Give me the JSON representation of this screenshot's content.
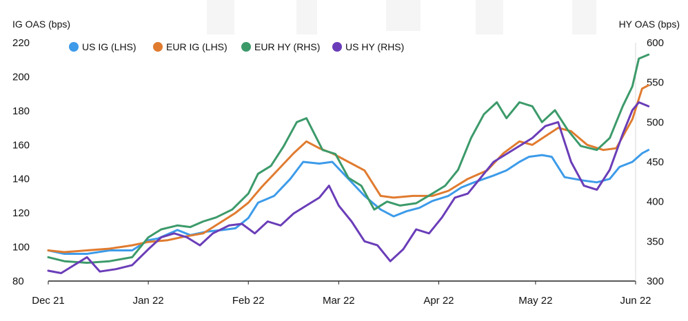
{
  "chart_data": {
    "type": "line",
    "left_axis": {
      "label": "IG OAS (bps)",
      "range": [
        80,
        220
      ],
      "ticks": [
        80,
        100,
        120,
        140,
        160,
        180,
        200,
        220
      ]
    },
    "right_axis": {
      "label": "HY OAS (bps)",
      "range": [
        300,
        600
      ],
      "ticks": [
        300,
        350,
        400,
        450,
        500,
        550,
        600
      ]
    },
    "x_axis": {
      "range": [
        "2021-12-01",
        "2022-06-01"
      ],
      "ticks": [
        {
          "date": "2021-12-01",
          "label": "Dec 21"
        },
        {
          "date": "2022-01-01",
          "label": "Jan 22"
        },
        {
          "date": "2022-02-01",
          "label": "Feb 22"
        },
        {
          "date": "2022-03-01",
          "label": "Mar 22"
        },
        {
          "date": "2022-04-01",
          "label": "Apr 22"
        },
        {
          "date": "2022-05-01",
          "label": "May 22"
        },
        {
          "date": "2022-06-01",
          "label": "Jun 22"
        }
      ]
    },
    "legend_position": "top-left",
    "grid": false,
    "series": [
      {
        "name": "US IG (LHS)",
        "axis": "left",
        "color": "#3d9be9",
        "points": [
          [
            "2021-12-01",
            98
          ],
          [
            "2021-12-06",
            96
          ],
          [
            "2021-12-13",
            96
          ],
          [
            "2021-12-20",
            98
          ],
          [
            "2021-12-27",
            98
          ],
          [
            "2022-01-01",
            104
          ],
          [
            "2022-01-04",
            105
          ],
          [
            "2022-01-10",
            110
          ],
          [
            "2022-01-14",
            107
          ],
          [
            "2022-01-19",
            109
          ],
          [
            "2022-01-24",
            110
          ],
          [
            "2022-01-28",
            111
          ],
          [
            "2022-02-01",
            117
          ],
          [
            "2022-02-04",
            126
          ],
          [
            "2022-02-09",
            130
          ],
          [
            "2022-02-14",
            140
          ],
          [
            "2022-02-18",
            150
          ],
          [
            "2022-02-23",
            149
          ],
          [
            "2022-02-27",
            150
          ],
          [
            "2022-03-04",
            140
          ],
          [
            "2022-03-09",
            130
          ],
          [
            "2022-03-14",
            122
          ],
          [
            "2022-03-18",
            118
          ],
          [
            "2022-03-22",
            121
          ],
          [
            "2022-03-26",
            123
          ],
          [
            "2022-03-30",
            127
          ],
          [
            "2022-04-04",
            130
          ],
          [
            "2022-04-08",
            135
          ],
          [
            "2022-04-12",
            138
          ],
          [
            "2022-04-18",
            142
          ],
          [
            "2022-04-22",
            145
          ],
          [
            "2022-04-26",
            150
          ],
          [
            "2022-04-29",
            153
          ],
          [
            "2022-05-03",
            154
          ],
          [
            "2022-05-06",
            153
          ],
          [
            "2022-05-10",
            141
          ],
          [
            "2022-05-16",
            139
          ],
          [
            "2022-05-20",
            138
          ],
          [
            "2022-05-24",
            140
          ],
          [
            "2022-05-27",
            147
          ],
          [
            "2022-05-31",
            150
          ],
          [
            "2022-06-03",
            155
          ],
          [
            "2022-06-05",
            157
          ]
        ]
      },
      {
        "name": "EUR IG (LHS)",
        "axis": "left",
        "color": "#e07b2f",
        "points": [
          [
            "2021-12-01",
            98
          ],
          [
            "2021-12-06",
            97
          ],
          [
            "2021-12-13",
            98
          ],
          [
            "2021-12-20",
            99
          ],
          [
            "2021-12-27",
            101
          ],
          [
            "2022-01-01",
            103
          ],
          [
            "2022-01-07",
            104
          ],
          [
            "2022-01-12",
            106
          ],
          [
            "2022-01-18",
            108
          ],
          [
            "2022-01-23",
            114
          ],
          [
            "2022-01-28",
            120
          ],
          [
            "2022-02-01",
            126
          ],
          [
            "2022-02-05",
            135
          ],
          [
            "2022-02-10",
            145
          ],
          [
            "2022-02-15",
            155
          ],
          [
            "2022-02-19",
            162
          ],
          [
            "2022-02-23",
            158
          ],
          [
            "2022-02-27",
            155
          ],
          [
            "2022-03-04",
            150
          ],
          [
            "2022-03-09",
            145
          ],
          [
            "2022-03-14",
            130
          ],
          [
            "2022-03-18",
            129
          ],
          [
            "2022-03-24",
            130
          ],
          [
            "2022-03-30",
            130
          ],
          [
            "2022-04-04",
            133
          ],
          [
            "2022-04-10",
            140
          ],
          [
            "2022-04-16",
            145
          ],
          [
            "2022-04-21",
            155
          ],
          [
            "2022-04-26",
            162
          ],
          [
            "2022-04-30",
            160
          ],
          [
            "2022-05-04",
            165
          ],
          [
            "2022-05-08",
            170
          ],
          [
            "2022-05-12",
            168
          ],
          [
            "2022-05-17",
            160
          ],
          [
            "2022-05-22",
            157
          ],
          [
            "2022-05-26",
            158
          ],
          [
            "2022-05-31",
            175
          ],
          [
            "2022-06-03",
            193
          ],
          [
            "2022-06-05",
            195
          ]
        ]
      },
      {
        "name": "EUR HY (RHS)",
        "axis": "right",
        "color": "#3c9a6a",
        "points": [
          [
            "2021-12-01",
            330
          ],
          [
            "2021-12-06",
            325
          ],
          [
            "2021-12-13",
            323
          ],
          [
            "2021-12-20",
            325
          ],
          [
            "2021-12-27",
            330
          ],
          [
            "2022-01-01",
            355
          ],
          [
            "2022-01-05",
            365
          ],
          [
            "2022-01-10",
            370
          ],
          [
            "2022-01-14",
            368
          ],
          [
            "2022-01-18",
            375
          ],
          [
            "2022-01-22",
            380
          ],
          [
            "2022-01-27",
            390
          ],
          [
            "2022-02-01",
            410
          ],
          [
            "2022-02-04",
            435
          ],
          [
            "2022-02-08",
            445
          ],
          [
            "2022-02-12",
            470
          ],
          [
            "2022-02-16",
            500
          ],
          [
            "2022-02-19",
            505
          ],
          [
            "2022-02-24",
            465
          ],
          [
            "2022-02-28",
            460
          ],
          [
            "2022-03-04",
            430
          ],
          [
            "2022-03-08",
            420
          ],
          [
            "2022-03-12",
            390
          ],
          [
            "2022-03-16",
            400
          ],
          [
            "2022-03-20",
            395
          ],
          [
            "2022-03-25",
            398
          ],
          [
            "2022-03-30",
            410
          ],
          [
            "2022-04-03",
            420
          ],
          [
            "2022-04-07",
            440
          ],
          [
            "2022-04-11",
            480
          ],
          [
            "2022-04-15",
            510
          ],
          [
            "2022-04-19",
            525
          ],
          [
            "2022-04-22",
            505
          ],
          [
            "2022-04-26",
            525
          ],
          [
            "2022-04-30",
            520
          ],
          [
            "2022-05-03",
            500
          ],
          [
            "2022-05-07",
            515
          ],
          [
            "2022-05-11",
            490
          ],
          [
            "2022-05-15",
            470
          ],
          [
            "2022-05-20",
            465
          ],
          [
            "2022-05-24",
            480
          ],
          [
            "2022-05-28",
            520
          ],
          [
            "2022-05-31",
            545
          ],
          [
            "2022-06-02",
            580
          ],
          [
            "2022-06-05",
            585
          ]
        ]
      },
      {
        "name": "US HY (RHS)",
        "axis": "right",
        "color": "#6a3db8",
        "points": [
          [
            "2021-12-01",
            313
          ],
          [
            "2021-12-05",
            310
          ],
          [
            "2021-12-09",
            320
          ],
          [
            "2021-12-13",
            330
          ],
          [
            "2021-12-17",
            312
          ],
          [
            "2021-12-22",
            315
          ],
          [
            "2021-12-27",
            320
          ],
          [
            "2022-01-01",
            340
          ],
          [
            "2022-01-05",
            355
          ],
          [
            "2022-01-09",
            360
          ],
          [
            "2022-01-13",
            355
          ],
          [
            "2022-01-17",
            345
          ],
          [
            "2022-01-21",
            360
          ],
          [
            "2022-01-26",
            370
          ],
          [
            "2022-01-30",
            372
          ],
          [
            "2022-02-03",
            360
          ],
          [
            "2022-02-07",
            375
          ],
          [
            "2022-02-11",
            370
          ],
          [
            "2022-02-15",
            385
          ],
          [
            "2022-02-19",
            395
          ],
          [
            "2022-02-23",
            405
          ],
          [
            "2022-02-26",
            420
          ],
          [
            "2022-03-01",
            395
          ],
          [
            "2022-03-05",
            375
          ],
          [
            "2022-03-09",
            350
          ],
          [
            "2022-03-13",
            345
          ],
          [
            "2022-03-17",
            325
          ],
          [
            "2022-03-21",
            340
          ],
          [
            "2022-03-25",
            365
          ],
          [
            "2022-03-29",
            360
          ],
          [
            "2022-04-02",
            380
          ],
          [
            "2022-04-06",
            405
          ],
          [
            "2022-04-10",
            410
          ],
          [
            "2022-04-14",
            430
          ],
          [
            "2022-04-18",
            450
          ],
          [
            "2022-04-22",
            460
          ],
          [
            "2022-04-26",
            470
          ],
          [
            "2022-04-30",
            480
          ],
          [
            "2022-05-04",
            495
          ],
          [
            "2022-05-08",
            500
          ],
          [
            "2022-05-12",
            450
          ],
          [
            "2022-05-16",
            420
          ],
          [
            "2022-05-20",
            415
          ],
          [
            "2022-05-24",
            440
          ],
          [
            "2022-05-28",
            485
          ],
          [
            "2022-05-31",
            515
          ],
          [
            "2022-06-02",
            525
          ],
          [
            "2022-06-05",
            520
          ]
        ]
      }
    ]
  }
}
